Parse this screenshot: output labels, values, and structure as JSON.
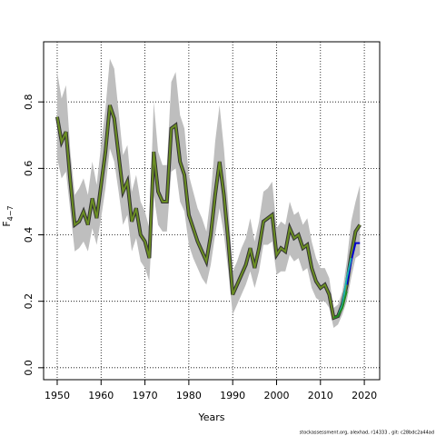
{
  "chart_data": {
    "type": "line",
    "x_label": "Years",
    "y_label": "F",
    "y_label_sub": "4−7",
    "footer": "stockassessment.org, alexhad, r14333 , git: c28bdc2a44ad",
    "xlim": [
      1946.9,
      2023.5
    ],
    "ylim": [
      -0.036,
      0.981
    ],
    "xticks": [
      1950,
      1960,
      1970,
      1980,
      1990,
      2000,
      2010,
      2020
    ],
    "yticks": [
      {
        "value": 0,
        "label": "0.0"
      },
      0.2,
      0.4,
      0.6,
      0.8
    ],
    "grid": true,
    "band_color": "#bebebe",
    "series": [
      {
        "color": "#6b8e23",
        "outline": "#333333",
        "x": [
          1950,
          1951,
          1952,
          1953,
          1954,
          1955,
          1956,
          1957,
          1958,
          1959,
          1960,
          1961,
          1962,
          1963,
          1964,
          1965,
          1966,
          1967,
          1968,
          1969,
          1970,
          1971,
          1972,
          1973,
          1974,
          1975,
          1976,
          1977,
          1978,
          1979,
          1980,
          1981,
          1982,
          1983,
          1984,
          1985,
          1986,
          1987,
          1988,
          1989,
          1990,
          1991,
          1992,
          1993,
          1994,
          1995,
          1996,
          1997,
          1998,
          1999,
          2000,
          2001,
          2002,
          2003,
          2004,
          2005,
          2006,
          2007,
          2008,
          2009,
          2010,
          2011,
          2012,
          2013,
          2014,
          2015,
          2016,
          2017,
          2018,
          2019
        ],
        "values": [
          0.755,
          0.68,
          0.71,
          0.56,
          0.43,
          0.44,
          0.47,
          0.43,
          0.51,
          0.45,
          0.55,
          0.65,
          0.79,
          0.75,
          0.64,
          0.53,
          0.56,
          0.44,
          0.48,
          0.4,
          0.38,
          0.33,
          0.65,
          0.53,
          0.5,
          0.5,
          0.72,
          0.73,
          0.62,
          0.58,
          0.46,
          0.42,
          0.38,
          0.35,
          0.32,
          0.4,
          0.52,
          0.62,
          0.52,
          0.38,
          0.22,
          0.25,
          0.28,
          0.31,
          0.36,
          0.3,
          0.36,
          0.44,
          0.45,
          0.46,
          0.34,
          0.36,
          0.35,
          0.42,
          0.39,
          0.4,
          0.36,
          0.37,
          0.3,
          0.26,
          0.24,
          0.25,
          0.22,
          0.15,
          0.155,
          0.19,
          0.25,
          0.34,
          0.41,
          0.43
        ],
        "upper": [
          0.89,
          0.81,
          0.85,
          0.65,
          0.52,
          0.54,
          0.57,
          0.52,
          0.62,
          0.55,
          0.67,
          0.78,
          0.93,
          0.9,
          0.77,
          0.64,
          0.67,
          0.53,
          0.58,
          0.5,
          0.47,
          0.42,
          0.8,
          0.65,
          0.61,
          0.61,
          0.86,
          0.89,
          0.76,
          0.72,
          0.58,
          0.53,
          0.48,
          0.45,
          0.41,
          0.52,
          0.68,
          0.79,
          0.66,
          0.49,
          0.29,
          0.32,
          0.36,
          0.39,
          0.45,
          0.38,
          0.44,
          0.53,
          0.54,
          0.56,
          0.42,
          0.44,
          0.43,
          0.5,
          0.46,
          0.47,
          0.43,
          0.45,
          0.38,
          0.33,
          0.3,
          0.3,
          0.27,
          0.18,
          0.19,
          0.23,
          0.32,
          0.44,
          0.5,
          0.55
        ],
        "lower": [
          0.63,
          0.57,
          0.59,
          0.47,
          0.35,
          0.36,
          0.38,
          0.35,
          0.42,
          0.37,
          0.45,
          0.54,
          0.66,
          0.62,
          0.53,
          0.43,
          0.46,
          0.35,
          0.39,
          0.32,
          0.3,
          0.26,
          0.52,
          0.43,
          0.41,
          0.41,
          0.59,
          0.6,
          0.5,
          0.47,
          0.37,
          0.33,
          0.3,
          0.27,
          0.25,
          0.31,
          0.4,
          0.48,
          0.4,
          0.29,
          0.16,
          0.19,
          0.22,
          0.25,
          0.29,
          0.24,
          0.29,
          0.37,
          0.37,
          0.38,
          0.28,
          0.29,
          0.29,
          0.34,
          0.32,
          0.33,
          0.29,
          0.3,
          0.24,
          0.21,
          0.2,
          0.2,
          0.18,
          0.12,
          0.13,
          0.16,
          0.2,
          0.27,
          0.33,
          0.34
        ]
      },
      {
        "color": "#0000cd",
        "x": [
          2016,
          2017,
          2018,
          2019
        ],
        "values": [
          0.25,
          0.32,
          0.375,
          0.375
        ]
      },
      {
        "color": "#20b2aa",
        "x": [
          2014,
          2015,
          2016,
          2017
        ],
        "values": [
          0.155,
          0.19,
          0.27,
          0.33
        ]
      },
      {
        "color": "#228b22",
        "x": [
          2013,
          2014,
          2015,
          2016
        ],
        "values": [
          0.15,
          0.155,
          0.18,
          0.23
        ]
      }
    ]
  }
}
